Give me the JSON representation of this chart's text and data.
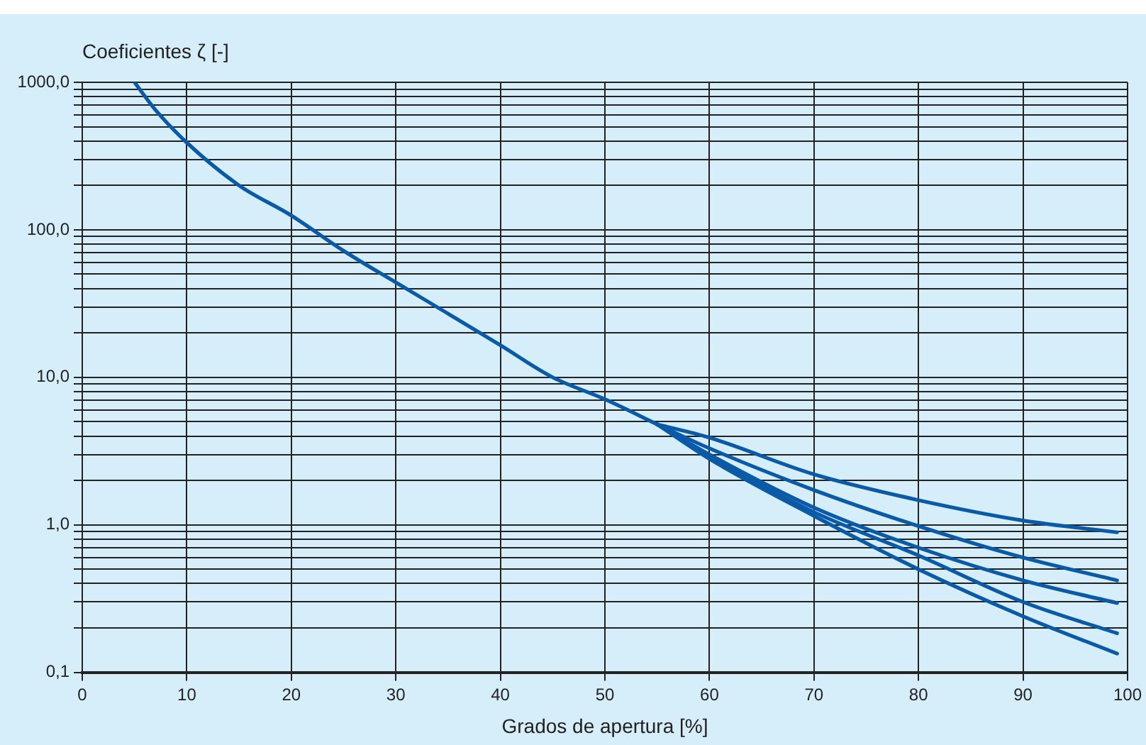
{
  "chart_data": {
    "type": "line",
    "ylabel": "Coeficientes ζ [-]",
    "xlabel": "Grados de apertura [%]",
    "series": [
      {
        "color": "#0a5aa8",
        "x": [
          5,
          7,
          10,
          15,
          20,
          25,
          30,
          35,
          40,
          45,
          50,
          55
        ],
        "values": [
          1000,
          650,
          390,
          200,
          125,
          72,
          44,
          27,
          16.5,
          10,
          7.1,
          4.8
        ]
      },
      {
        "color": "#0a5aa8",
        "x": [
          55,
          60,
          70,
          80,
          90,
          99
        ],
        "values": [
          4.8,
          3.9,
          2.2,
          1.47,
          1.07,
          0.89
        ]
      },
      {
        "color": "#0a5aa8",
        "x": [
          55,
          60,
          70,
          80,
          90,
          99
        ],
        "values": [
          4.8,
          3.3,
          1.72,
          0.98,
          0.6,
          0.42
        ]
      },
      {
        "color": "#0a5aa8",
        "x": [
          55,
          60,
          70,
          80,
          90,
          99
        ],
        "values": [
          4.8,
          3.0,
          1.31,
          0.7,
          0.42,
          0.295
        ]
      },
      {
        "color": "#0a5aa8",
        "x": [
          55,
          60,
          70,
          80,
          90,
          99
        ],
        "values": [
          4.8,
          2.9,
          1.22,
          0.62,
          0.3,
          0.184
        ]
      },
      {
        "color": "#0a5aa8",
        "x": [
          55,
          60,
          70,
          80,
          90,
          99
        ],
        "values": [
          4.8,
          2.8,
          1.15,
          0.5,
          0.24,
          0.134
        ]
      }
    ],
    "log": "y",
    "xlim": [
      0,
      100
    ],
    "ylim": [
      0.1,
      1000
    ],
    "xticks": [
      0,
      10,
      20,
      30,
      40,
      50,
      60,
      70,
      80,
      90,
      100
    ],
    "yticks": [
      {
        "value": 0.1,
        "label": "0,1"
      },
      {
        "value": 0.2,
        "label": null
      },
      {
        "value": 0.3,
        "label": null
      },
      {
        "value": 0.4,
        "label": null
      },
      {
        "value": 0.5,
        "label": null
      },
      {
        "value": 0.6,
        "label": null
      },
      {
        "value": 0.7,
        "label": null
      },
      {
        "value": 0.8,
        "label": null
      },
      {
        "value": 0.9,
        "label": null
      },
      {
        "value": 1,
        "label": "1,0"
      },
      {
        "value": 2,
        "label": null
      },
      {
        "value": 3,
        "label": null
      },
      {
        "value": 4,
        "label": null
      },
      {
        "value": 5,
        "label": null
      },
      {
        "value": 6,
        "label": null
      },
      {
        "value": 7,
        "label": null
      },
      {
        "value": 8,
        "label": null
      },
      {
        "value": 9,
        "label": null
      },
      {
        "value": 10,
        "label": "10,0"
      },
      {
        "value": 20,
        "label": null
      },
      {
        "value": 30,
        "label": null
      },
      {
        "value": 40,
        "label": null
      },
      {
        "value": 50,
        "label": null
      },
      {
        "value": 60,
        "label": null
      },
      {
        "value": 70,
        "label": null
      },
      {
        "value": 80,
        "label": null
      },
      {
        "value": 90,
        "label": null
      },
      {
        "value": 100,
        "label": "100,0"
      },
      {
        "value": 200,
        "label": null
      },
      {
        "value": 300,
        "label": null
      },
      {
        "value": 400,
        "label": null
      },
      {
        "value": 500,
        "label": null
      },
      {
        "value": 600,
        "label": null
      },
      {
        "value": 700,
        "label": null
      },
      {
        "value": 800,
        "label": null
      },
      {
        "value": 900,
        "label": null
      },
      {
        "value": 1000,
        "label": "1000,0"
      }
    ],
    "grid": true,
    "legend": false,
    "marker": "none",
    "line_style": "solid"
  }
}
